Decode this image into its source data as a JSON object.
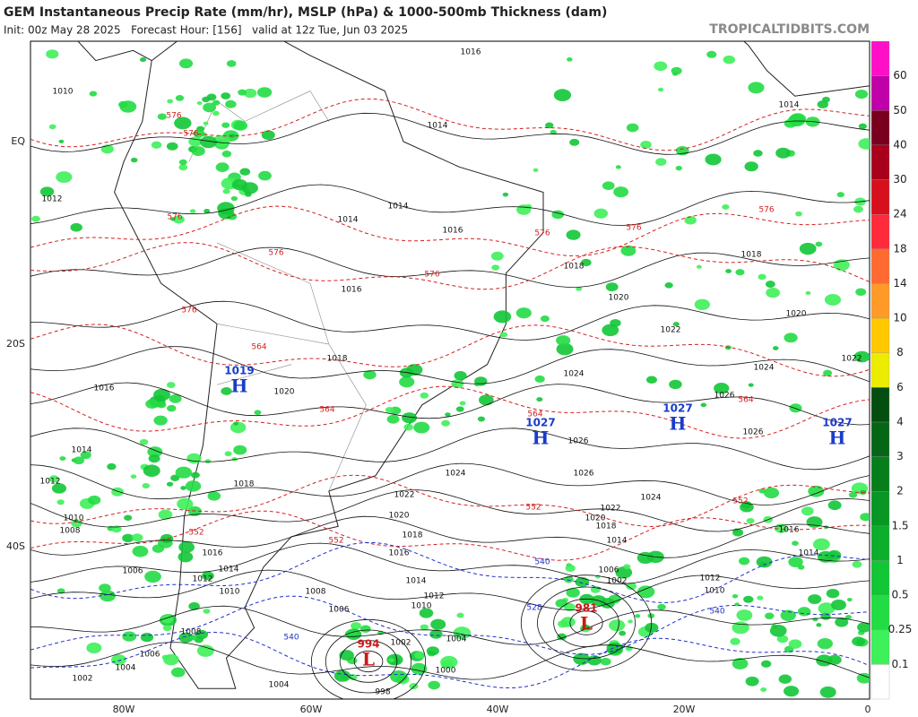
{
  "header": {
    "title": "GEM Instantaneous Precip Rate (mm/hr), MSLP (hPa) & 1000-500mb Thickness (dam)",
    "subtitle": "Init: 00z May 28 2025   Forecast Hour: [156]   valid at 12z Tue, Jun 03 2025",
    "watermark": "TROPICALTIDBITS.COM"
  },
  "axes": {
    "lat_labels": [
      "EQ",
      "20S",
      "40S"
    ],
    "lon_labels": [
      "80W",
      "60W",
      "40W",
      "20W",
      "0"
    ]
  },
  "colorbar": {
    "labels": [
      "0.1",
      "0.25",
      "0.5",
      "1",
      "1.5",
      "2",
      "3",
      "4",
      "6",
      "8",
      "10",
      "14",
      "18",
      "24",
      "30",
      "40",
      "50",
      "60"
    ],
    "colors": [
      "#ffffff",
      "#3ef05a",
      "#22dc44",
      "#12c636",
      "#0cae2c",
      "#089624",
      "#067e1c",
      "#056616",
      "#044e10",
      "#ecec00",
      "#ffc800",
      "#ff9a28",
      "#ff6a30",
      "#ff2a3a",
      "#d8101e",
      "#a8001c",
      "#78001e",
      "#c000a8",
      "#ff10c8"
    ]
  },
  "centers": [
    {
      "symbol": "H",
      "value": "1019"
    },
    {
      "symbol": "H",
      "value": "1027"
    },
    {
      "symbol": "H",
      "value": "1027"
    },
    {
      "symbol": "H",
      "value": "1027"
    },
    {
      "symbol": "L",
      "value": "994"
    },
    {
      "symbol": "L",
      "value": "981"
    }
  ],
  "isobar_labels": [
    "1016",
    "1010",
    "1014",
    "1014",
    "1012",
    "1014",
    "1014",
    "1016",
    "1018",
    "1018",
    "1016",
    "1020",
    "1020",
    "1018",
    "1022",
    "1024",
    "1024",
    "1022",
    "1026",
    "1026",
    "1026",
    "1026",
    "1024",
    "1024",
    "1022",
    "1020",
    "1018",
    "1016",
    "1014",
    "1012",
    "1010",
    "1008",
    "1006",
    "1004",
    "1002",
    "1000",
    "998",
    "1004",
    "1002",
    "1004",
    "1006",
    "1008",
    "1010",
    "1012",
    "1014",
    "1016",
    "1018",
    "1020",
    "1016",
    "1014",
    "1012",
    "1010",
    "1008",
    "1006",
    "1012",
    "1010",
    "1014",
    "1016",
    "1018",
    "1020",
    "1022",
    "1014",
    "1006",
    "1002"
  ],
  "thickness_labels": [
    "576",
    "576",
    "576",
    "576",
    "576",
    "576",
    "576",
    "576",
    "576",
    "564",
    "564",
    "564",
    "564",
    "552",
    "552",
    "552",
    "552"
  ],
  "cold_thickness_labels": [
    "540",
    "540",
    "540",
    "528"
  ]
}
